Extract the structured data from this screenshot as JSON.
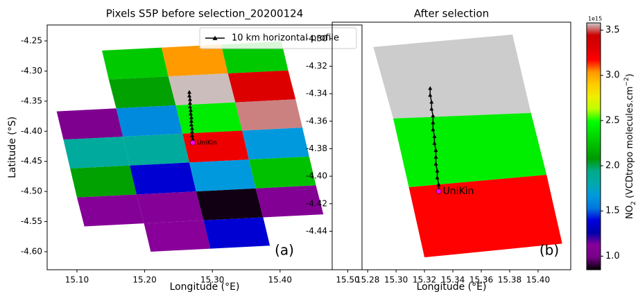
{
  "chart_data": [
    {
      "type": "mesh",
      "title": "Pixels S5P before selection_20200124",
      "xlabel": "Longitude (°E)",
      "ylabel": "Latitude (°S)",
      "xlim": [
        15.056,
        15.521
      ],
      "ylim": [
        -4.63,
        -4.2235
      ],
      "xticks": [
        {
          "value": 15.1,
          "label": "15.10"
        },
        {
          "value": 15.2,
          "label": "15.20"
        },
        {
          "value": 15.3,
          "label": "15.30"
        },
        {
          "value": 15.4,
          "label": "15.40"
        },
        {
          "value": 15.5,
          "label": "15.50"
        }
      ],
      "yticks": [
        -4.25,
        {
          "value": -4.3,
          "label": "-4.30"
        },
        -4.35,
        {
          "value": -4.4,
          "label": "-4.40"
        },
        -4.45,
        {
          "value": -4.5,
          "label": "-4.50"
        },
        -4.55,
        {
          "value": -4.6,
          "label": "-4.60"
        }
      ],
      "mesh": {
        "lon": [
          [
            15.049,
            15.137,
            15.225,
            15.313,
            15.402
          ],
          [
            15.059,
            15.147,
            15.235,
            15.323,
            15.412
          ],
          [
            15.07,
            15.158,
            15.246,
            15.334,
            15.423
          ],
          [
            15.08,
            15.168,
            15.256,
            15.344,
            15.433
          ],
          [
            15.09,
            15.178,
            15.266,
            15.354,
            15.443
          ],
          [
            15.1,
            15.188,
            15.276,
            15.364,
            15.453
          ],
          [
            15.111,
            15.199,
            15.287,
            15.375,
            15.464
          ],
          [
            15.121,
            15.209,
            15.297,
            15.385,
            15.474
          ]
        ],
        "lat": [
          [
            -4.271,
            -4.266,
            -4.261,
            -4.256,
            -4.251
          ],
          [
            -4.319,
            -4.314,
            -4.309,
            -4.304,
            -4.299
          ],
          [
            -4.367,
            -4.362,
            -4.357,
            -4.352,
            -4.347
          ],
          [
            -4.414,
            -4.409,
            -4.404,
            -4.399,
            -4.394
          ],
          [
            -4.462,
            -4.457,
            -4.452,
            -4.447,
            -4.442
          ],
          [
            -4.51,
            -4.505,
            -4.5,
            -4.495,
            -4.49
          ],
          [
            -4.558,
            -4.553,
            -4.548,
            -4.543,
            -4.538
          ],
          [
            -4.605,
            -4.6,
            -4.595,
            -4.59,
            -4.585
          ]
        ],
        "values": [
          [
            null,
            2.27,
            3.03,
            2.27
          ],
          [
            null,
            2.11,
            3.57,
            3.31
          ],
          [
            1.04,
            1.61,
            2.41,
            3.53
          ],
          [
            1.86,
            1.86,
            3.24,
            1.67
          ],
          [
            2.11,
            1.37,
            1.67,
            2.24
          ],
          [
            1.1,
            1.1,
            0.87,
            1.08
          ],
          [
            null,
            1.12,
            1.37,
            null
          ]
        ]
      },
      "series": [
        {
          "name": "10 km horizontal profile",
          "color": "#000000",
          "x": [
            15.266,
            15.266,
            15.267,
            15.267,
            15.267,
            15.268,
            15.268,
            15.269,
            15.269,
            15.269,
            15.27,
            15.27,
            15.27,
            15.271,
            15.271
          ],
          "y": [
            -4.335,
            -4.341,
            -4.347,
            -4.353,
            -4.359,
            -4.365,
            -4.371,
            -4.377,
            -4.383,
            -4.389,
            -4.395,
            -4.401,
            -4.407,
            -4.413,
            -4.419
          ]
        }
      ],
      "legend": "upper right",
      "point": {
        "x": 15.271,
        "y": -4.419,
        "label": "UniKin",
        "color": "#ff00ff"
      },
      "panel_label": "(a)"
    },
    {
      "type": "mesh",
      "title": "After selection",
      "xlabel": "Longitude (°E)",
      "xlim": [
        15.255,
        15.423
      ],
      "ylim": [
        -4.468,
        -4.288
      ],
      "xticks": [
        15.28,
        {
          "value": 15.3,
          "label": "15.30"
        },
        15.32,
        15.34,
        15.36,
        15.38,
        {
          "value": 15.4,
          "label": "15.40"
        }
      ],
      "yticks": [
        {
          "value": -4.3,
          "label": "-4.30"
        },
        -4.32,
        -4.34,
        -4.36,
        -4.38,
        {
          "value": -4.4,
          "label": "-4.40"
        },
        -4.42,
        -4.44
      ],
      "mesh": {
        "lon": [
          [
            15.284,
            15.382
          ],
          [
            15.298,
            15.395
          ],
          [
            15.309,
            15.406
          ],
          [
            15.32,
            15.417
          ]
        ],
        "lat": [
          [
            -4.306,
            -4.297
          ],
          [
            -4.358,
            -4.354
          ],
          [
            -4.408,
            -4.399
          ],
          [
            -4.459,
            -4.449
          ]
        ],
        "values": [
          [
            3.58
          ],
          [
            2.42
          ],
          [
            3.17
          ]
        ]
      },
      "series": [
        {
          "color": "#000000",
          "x": [
            15.324,
            15.324,
            15.325,
            15.325,
            15.326,
            15.326,
            15.326,
            15.327,
            15.327,
            15.328,
            15.328,
            15.328,
            15.329,
            15.329,
            15.33,
            15.33
          ],
          "y": [
            -4.336,
            -4.341,
            -4.346,
            -4.351,
            -4.356,
            -4.361,
            -4.366,
            -4.371,
            -4.376,
            -4.381,
            -4.386,
            -4.391,
            -4.396,
            -4.401,
            -4.406,
            -4.411
          ]
        }
      ],
      "point": {
        "x": 15.33,
        "y": -4.411,
        "label": "UniKin",
        "color": "#ff00ff"
      },
      "panel_label": "(b)"
    }
  ],
  "colorbar": {
    "label": [
      "NO",
      "2",
      " (VCDtropo molecules.cm",
      "−2",
      ")"
    ],
    "offset": "1e15",
    "clim": [
      0.85,
      3.58
    ],
    "ticks": [
      {
        "value": 1,
        "label": "1.0"
      },
      1.5,
      {
        "value": 2,
        "label": "2.0"
      },
      2.5,
      {
        "value": 3,
        "label": "3.0"
      },
      3.5
    ],
    "colors": [
      "#000000",
      "#770088",
      "#880099",
      "#0000aa",
      "#0000dd",
      "#0077dd",
      "#0099dd",
      "#00aaaa",
      "#00aa88",
      "#009900",
      "#00bb00",
      "#00dd00",
      "#00ff00",
      "#bbff00",
      "#eeee00",
      "#ffcc00",
      "#ff9900",
      "#ff0000",
      "#dd0000",
      "#cc0000",
      "#cccccc"
    ]
  }
}
